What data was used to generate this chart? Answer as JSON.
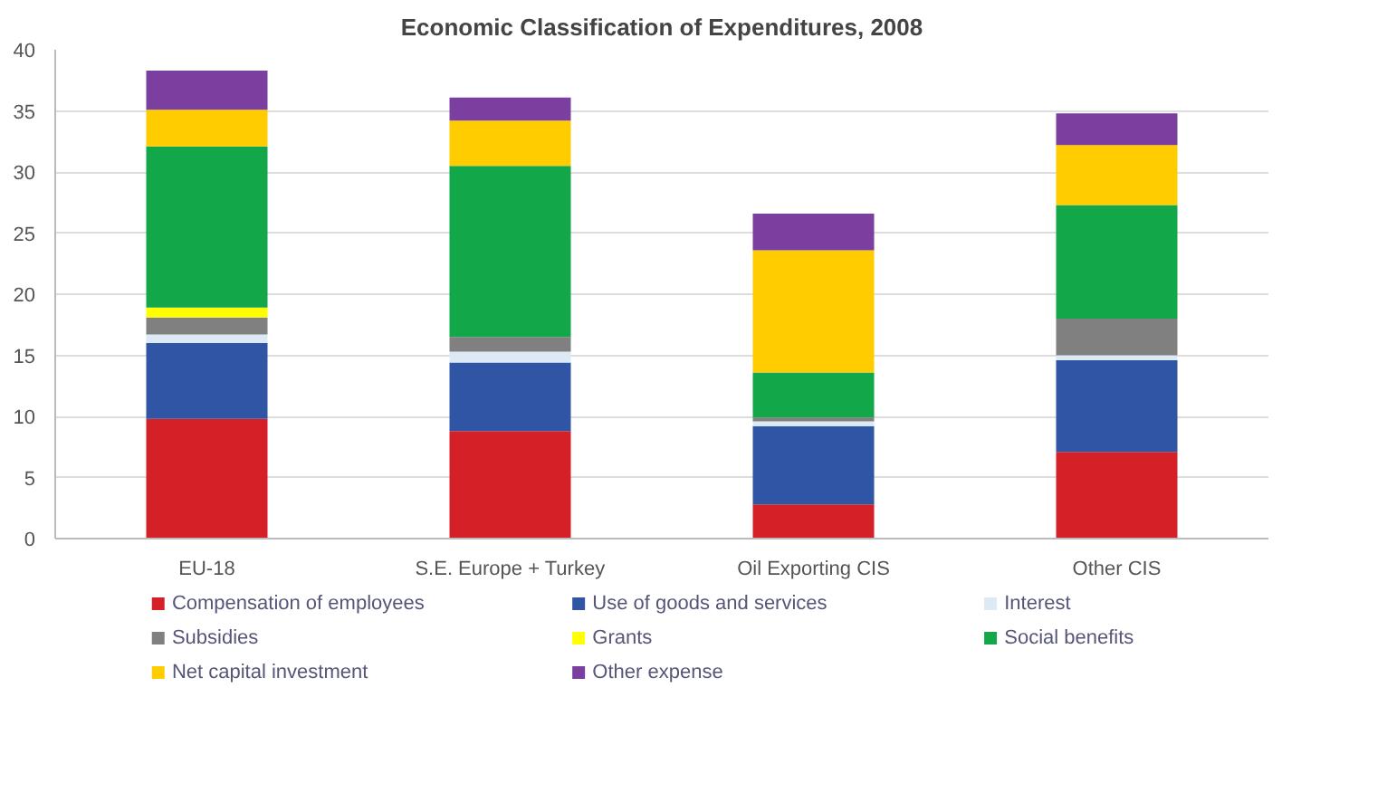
{
  "chart_data": {
    "type": "bar",
    "stacked": true,
    "title": "Economic Classification of Expenditures, 2008",
    "categories": [
      "EU-18",
      "S.E. Europe + Turkey",
      "Oil Exporting CIS",
      "Other CIS"
    ],
    "ylim": [
      0,
      40
    ],
    "yticks": [
      0,
      5,
      10,
      15,
      20,
      25,
      30,
      35,
      40
    ],
    "grid": "y",
    "legend": "bottom",
    "series": [
      {
        "name": "Compensation of employees",
        "color": "#d62027",
        "values": [
          9.8,
          8.8,
          2.8,
          7.1
        ]
      },
      {
        "name": "Use of goods and services",
        "color": "#2f55a4",
        "values": [
          6.2,
          5.6,
          6.4,
          7.5
        ]
      },
      {
        "name": "Interest",
        "color": "#dde9f5",
        "values": [
          0.7,
          0.9,
          0.4,
          0.4
        ]
      },
      {
        "name": "Subsidies",
        "color": "#808080",
        "values": [
          1.4,
          1.2,
          0.3,
          3.0
        ]
      },
      {
        "name": "Grants",
        "color": "#ffff00",
        "values": [
          0.8,
          0,
          0,
          0
        ]
      },
      {
        "name": "Social benefits",
        "color": "#12a84a",
        "values": [
          13.2,
          14.0,
          3.7,
          9.3
        ]
      },
      {
        "name": "Net capital investment",
        "color": "#ffcc00",
        "values": [
          3.0,
          3.7,
          10.0,
          4.9
        ]
      },
      {
        "name": "Other expense",
        "color": "#7b3fa0",
        "values": [
          3.2,
          1.9,
          3.0,
          2.6
        ]
      }
    ]
  }
}
